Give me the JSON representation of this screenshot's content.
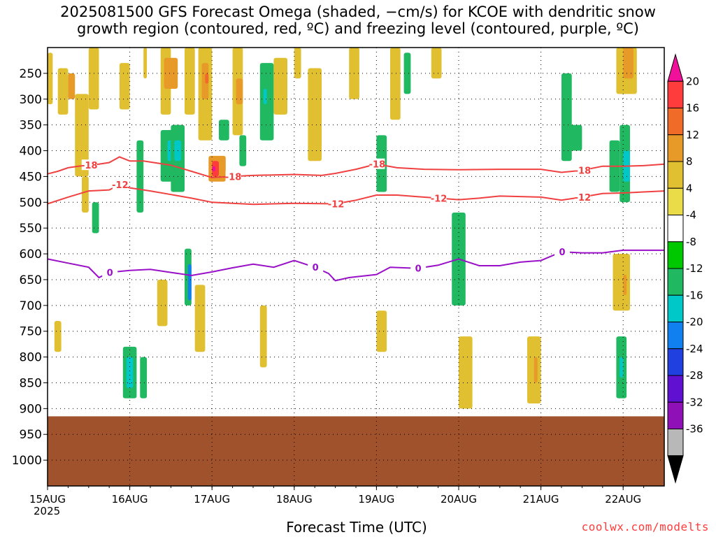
{
  "title_line1": "2025081500 GFS Forecast Omega (shaded, −cm/s) for KCOE with dendritic snow",
  "title_line2": "growth region (contoured, red, ºC) and freezing level (contoured, purple, ºC)",
  "xlabel": "Forecast Time (UTC)",
  "year_label": "2025",
  "credit": "coolwx.com/modelts",
  "chart_data": {
    "type": "heatmap",
    "title": "2025081500 GFS Forecast Omega (shaded, −cm/s) for KCOE with dendritic snow growth region (contoured, red, ºC) and freezing level (contoured, purple, ºC)",
    "xlabel": "Forecast Time (UTC)",
    "ylabel": "",
    "x_ticks": [
      "15AUG",
      "16AUG",
      "17AUG",
      "18AUG",
      "19AUG",
      "20AUG",
      "21AUG",
      "22AUG"
    ],
    "x_tick_hours": [
      0,
      24,
      48,
      72,
      96,
      120,
      144,
      168
    ],
    "xlim_hours": [
      0,
      180
    ],
    "y_ticks": [
      250,
      300,
      350,
      400,
      450,
      500,
      550,
      600,
      650,
      700,
      750,
      800,
      850,
      900,
      950,
      1000
    ],
    "ylim_hPa": [
      200,
      1050
    ],
    "grid": true,
    "colorbar": {
      "position": "right",
      "labels": [
        "20",
        "16",
        "12",
        "8",
        "4",
        "-4",
        "-8",
        "-12",
        "-16",
        "-20",
        "-24",
        "-28",
        "-32",
        "-36"
      ],
      "colors": [
        "#f0109a",
        "#ff3c3c",
        "#f06a28",
        "#e89a28",
        "#e0c030",
        "#eadc48",
        "#ffffff",
        "#00c800",
        "#20b860",
        "#00c8c8",
        "#1080f0",
        "#2040e0",
        "#6010d0",
        "#9010b8",
        "#b8b8b8",
        "#000000"
      ]
    },
    "contours": [
      {
        "label": "-18",
        "color": "#f04040",
        "points": [
          [
            0,
            445
          ],
          [
            3,
            440
          ],
          [
            6,
            433
          ],
          [
            9,
            430
          ],
          [
            12,
            428
          ],
          [
            15,
            426
          ],
          [
            18,
            423
          ],
          [
            21,
            412
          ],
          [
            24,
            420
          ],
          [
            28,
            420
          ],
          [
            32,
            424
          ],
          [
            36,
            428
          ],
          [
            42,
            440
          ],
          [
            48,
            452
          ],
          [
            54,
            450
          ],
          [
            60,
            448
          ],
          [
            72,
            446
          ],
          [
            80,
            448
          ],
          [
            84,
            444
          ],
          [
            90,
            436
          ],
          [
            96,
            426
          ],
          [
            102,
            433
          ],
          [
            110,
            436
          ],
          [
            120,
            437
          ],
          [
            132,
            436
          ],
          [
            144,
            436
          ],
          [
            150,
            442
          ],
          [
            156,
            438
          ],
          [
            162,
            430
          ],
          [
            168,
            430
          ],
          [
            174,
            429
          ],
          [
            180,
            426
          ]
        ]
      },
      {
        "label": "-12",
        "color": "#f04040",
        "points": [
          [
            0,
            503
          ],
          [
            6,
            490
          ],
          [
            12,
            478
          ],
          [
            18,
            476
          ],
          [
            21,
            466
          ],
          [
            24,
            472
          ],
          [
            30,
            478
          ],
          [
            36,
            485
          ],
          [
            42,
            492
          ],
          [
            48,
            500
          ],
          [
            54,
            502
          ],
          [
            60,
            504
          ],
          [
            72,
            502
          ],
          [
            84,
            503
          ],
          [
            90,
            496
          ],
          [
            96,
            486
          ],
          [
            102,
            486
          ],
          [
            108,
            489
          ],
          [
            114,
            492
          ],
          [
            120,
            495
          ],
          [
            126,
            492
          ],
          [
            132,
            488
          ],
          [
            144,
            490
          ],
          [
            150,
            496
          ],
          [
            156,
            490
          ],
          [
            162,
            483
          ],
          [
            168,
            482
          ],
          [
            174,
            480
          ],
          [
            180,
            478
          ]
        ]
      },
      {
        "label": "0",
        "color": "#9a10c8",
        "points": [
          [
            0,
            610
          ],
          [
            6,
            618
          ],
          [
            12,
            626
          ],
          [
            15,
            646
          ],
          [
            18,
            636
          ],
          [
            24,
            632
          ],
          [
            30,
            630
          ],
          [
            36,
            636
          ],
          [
            42,
            642
          ],
          [
            48,
            635
          ],
          [
            54,
            627
          ],
          [
            60,
            620
          ],
          [
            66,
            626
          ],
          [
            72,
            613
          ],
          [
            78,
            626
          ],
          [
            82,
            638
          ],
          [
            84,
            652
          ],
          [
            88,
            646
          ],
          [
            96,
            640
          ],
          [
            100,
            626
          ],
          [
            108,
            628
          ],
          [
            114,
            622
          ],
          [
            120,
            610
          ],
          [
            126,
            623
          ],
          [
            132,
            623
          ],
          [
            138,
            616
          ],
          [
            144,
            613
          ],
          [
            150,
            596
          ],
          [
            156,
            598
          ],
          [
            162,
            598
          ],
          [
            168,
            593
          ],
          [
            180,
            593
          ]
        ]
      }
    ],
    "shaded_cells": [
      {
        "x0": 0,
        "x1": 1.5,
        "p0": 210,
        "p1": 310,
        "value": 4
      },
      {
        "x0": 3,
        "x1": 6,
        "p0": 240,
        "p1": 330,
        "value": 4
      },
      {
        "x0": 6,
        "x1": 8,
        "p0": 250,
        "p1": 300,
        "value": 8
      },
      {
        "x0": 8,
        "x1": 12,
        "p0": 290,
        "p1": 450,
        "value": 4
      },
      {
        "x0": 10,
        "x1": 12,
        "p0": 450,
        "p1": 520,
        "value": 4
      },
      {
        "x0": 13,
        "x1": 15,
        "p0": 500,
        "p1": 560,
        "value": -8
      },
      {
        "x0": 12,
        "x1": 15,
        "p0": 200,
        "p1": 320,
        "value": 4
      },
      {
        "x0": 21,
        "x1": 24,
        "p0": 230,
        "p1": 320,
        "value": 4
      },
      {
        "x0": 26,
        "x1": 28,
        "p0": 380,
        "p1": 520,
        "value": -8
      },
      {
        "x0": 28,
        "x1": 29,
        "p0": 170,
        "p1": 260,
        "value": 4
      },
      {
        "x0": 33,
        "x1": 36,
        "p0": 200,
        "p1": 330,
        "value": 4
      },
      {
        "x0": 34,
        "x1": 38,
        "p0": 220,
        "p1": 280,
        "value": 8
      },
      {
        "x0": 33,
        "x1": 38,
        "p0": 360,
        "p1": 460,
        "value": -8
      },
      {
        "x0": 35,
        "x1": 37,
        "p0": 380,
        "p1": 420,
        "value": -12
      },
      {
        "x0": 36,
        "x1": 40,
        "p0": 350,
        "p1": 480,
        "value": -8
      },
      {
        "x0": 37,
        "x1": 39,
        "p0": 380,
        "p1": 420,
        "value": -12
      },
      {
        "x0": 40,
        "x1": 43,
        "p0": 200,
        "p1": 330,
        "value": 4
      },
      {
        "x0": 44,
        "x1": 48,
        "p0": 200,
        "p1": 380,
        "value": 4
      },
      {
        "x0": 45,
        "x1": 47,
        "p0": 230,
        "p1": 300,
        "value": 8
      },
      {
        "x0": 46,
        "x1": 47,
        "p0": 250,
        "p1": 270,
        "value": 12
      },
      {
        "x0": 47,
        "x1": 52,
        "p0": 410,
        "p1": 460,
        "value": 8
      },
      {
        "x0": 48,
        "x1": 50,
        "p0": 420,
        "p1": 450,
        "value": 16
      },
      {
        "x0": 48,
        "x1": 49,
        "p0": 430,
        "p1": 440,
        "value": 20
      },
      {
        "x0": 50,
        "x1": 53,
        "p0": 340,
        "p1": 380,
        "value": -8
      },
      {
        "x0": 54,
        "x1": 57,
        "p0": 200,
        "p1": 370,
        "value": 4
      },
      {
        "x0": 55,
        "x1": 57,
        "p0": 260,
        "p1": 310,
        "value": 8
      },
      {
        "x0": 56,
        "x1": 58,
        "p0": 370,
        "p1": 430,
        "value": -8
      },
      {
        "x0": 62,
        "x1": 66,
        "p0": 230,
        "p1": 380,
        "value": -8
      },
      {
        "x0": 63,
        "x1": 64,
        "p0": 280,
        "p1": 310,
        "value": -12
      },
      {
        "x0": 66,
        "x1": 70,
        "p0": 220,
        "p1": 330,
        "value": 4
      },
      {
        "x0": 72,
        "x1": 74,
        "p0": 200,
        "p1": 260,
        "value": 4
      },
      {
        "x0": 76,
        "x1": 80,
        "p0": 240,
        "p1": 420,
        "value": 4
      },
      {
        "x0": 88,
        "x1": 91,
        "p0": 170,
        "p1": 300,
        "value": 4
      },
      {
        "x0": 96,
        "x1": 99,
        "p0": 370,
        "p1": 480,
        "value": -8
      },
      {
        "x0": 100,
        "x1": 103,
        "p0": 190,
        "p1": 340,
        "value": 4
      },
      {
        "x0": 104,
        "x1": 106,
        "p0": 210,
        "p1": 290,
        "value": -8
      },
      {
        "x0": 118,
        "x1": 122,
        "p0": 520,
        "p1": 700,
        "value": -8
      },
      {
        "x0": 112,
        "x1": 115,
        "p0": 170,
        "p1": 260,
        "value": 4
      },
      {
        "x0": 150,
        "x1": 153,
        "p0": 250,
        "p1": 420,
        "value": -8
      },
      {
        "x0": 152,
        "x1": 156,
        "p0": 350,
        "p1": 400,
        "value": -8
      },
      {
        "x0": 164,
        "x1": 167,
        "p0": 380,
        "p1": 480,
        "value": -8
      },
      {
        "x0": 167,
        "x1": 170,
        "p0": 350,
        "p1": 500,
        "value": -8
      },
      {
        "x0": 168,
        "x1": 170,
        "p0": 400,
        "p1": 460,
        "value": -12
      },
      {
        "x0": 166,
        "x1": 172,
        "p0": 150,
        "p1": 290,
        "value": 4
      },
      {
        "x0": 168,
        "x1": 171,
        "p0": 200,
        "p1": 260,
        "value": 8
      },
      {
        "x0": 22,
        "x1": 26,
        "p0": 780,
        "p1": 880,
        "value": -8
      },
      {
        "x0": 23,
        "x1": 25,
        "p0": 800,
        "p1": 860,
        "value": -12
      },
      {
        "x0": 27,
        "x1": 29,
        "p0": 800,
        "p1": 880,
        "value": -8
      },
      {
        "x0": 40,
        "x1": 42,
        "p0": 590,
        "p1": 700,
        "value": -8
      },
      {
        "x0": 41,
        "x1": 42,
        "p0": 620,
        "p1": 690,
        "value": -16
      },
      {
        "x0": 43,
        "x1": 46,
        "p0": 660,
        "p1": 790,
        "value": 4
      },
      {
        "x0": 2,
        "x1": 4,
        "p0": 730,
        "p1": 790,
        "value": 4
      },
      {
        "x0": 32,
        "x1": 35,
        "p0": 650,
        "p1": 740,
        "value": 4
      },
      {
        "x0": 96,
        "x1": 99,
        "p0": 710,
        "p1": 790,
        "value": 4
      },
      {
        "x0": 140,
        "x1": 144,
        "p0": 760,
        "p1": 890,
        "value": 4
      },
      {
        "x0": 142,
        "x1": 143,
        "p0": 800,
        "p1": 850,
        "value": 8
      },
      {
        "x0": 166,
        "x1": 169,
        "p0": 760,
        "p1": 880,
        "value": -8
      },
      {
        "x0": 167,
        "x1": 168,
        "p0": 800,
        "p1": 840,
        "value": -12
      },
      {
        "x0": 165,
        "x1": 170,
        "p0": 600,
        "p1": 710,
        "value": 4
      },
      {
        "x0": 168,
        "x1": 169,
        "p0": 640,
        "p1": 680,
        "value": 8
      },
      {
        "x0": 120,
        "x1": 124,
        "p0": 760,
        "p1": 900,
        "value": 4
      },
      {
        "x0": 62,
        "x1": 64,
        "p0": 700,
        "p1": 820,
        "value": 4
      }
    ],
    "surface": {
      "color": "#a0522d",
      "p_top": 915,
      "p_bottom": 1050
    }
  }
}
